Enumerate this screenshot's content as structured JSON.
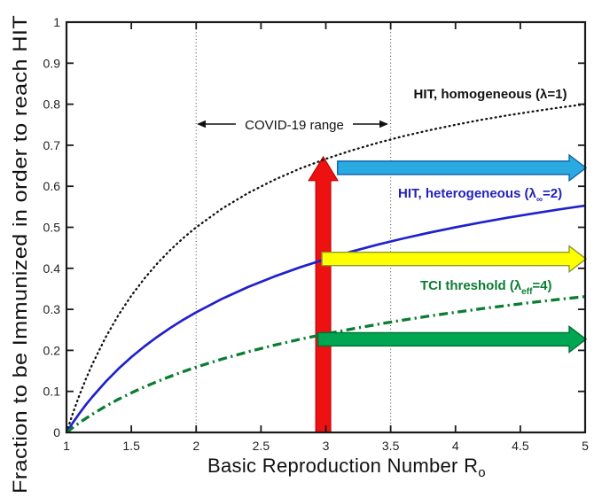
{
  "figure": {
    "background": "#ffffff",
    "frame_color": "#1a1a1a"
  },
  "labels": {
    "y_axis": "Fraction to be Immunized in order to reach HIT",
    "x_axis_main": "Basic Reproduction Number R",
    "x_axis_sub": "o",
    "covid_range": "COVID-19 range",
    "homo_label": "HIT, homogeneous (λ=1)",
    "hetero_pre": "HIT, heterogeneous (λ",
    "hetero_sub": "∞",
    "hetero_post": "=2)",
    "tci_pre": "TCI threshold (λ",
    "tci_sub": "eff",
    "tci_post": "=4)"
  },
  "chart_data": {
    "type": "line",
    "title": "",
    "xlabel": "Basic Reproduction Number Ro",
    "ylabel": "Fraction to be Immunized in order to reach HIT",
    "xlim": [
      1,
      5
    ],
    "ylim": [
      0,
      1
    ],
    "grid": "off",
    "legend_position": "labels-on-plot",
    "x_ticks": [
      1,
      1.5,
      2,
      2.5,
      3,
      3.5,
      4,
      4.5,
      5
    ],
    "x_tick_labels": [
      "1",
      "1.5",
      "2",
      "2.5",
      "3",
      "3.5",
      "4",
      "4.5",
      "5"
    ],
    "y_ticks": [
      0,
      0.1,
      0.2,
      0.3,
      0.4,
      0.5,
      0.6,
      0.7,
      0.8,
      0.9,
      1
    ],
    "y_tick_labels": [
      "0",
      "0.1",
      "0.2",
      "0.3",
      "0.4",
      "0.5",
      "0.6",
      "0.7",
      "0.8",
      "0.9",
      "1"
    ],
    "x": [
      1,
      1.05,
      1.1,
      1.15,
      1.2,
      1.3,
      1.4,
      1.5,
      1.6,
      1.7,
      1.8,
      1.9,
      2,
      2.2,
      2.4,
      2.6,
      2.8,
      3,
      3.2,
      3.4,
      3.6,
      3.8,
      4,
      4.2,
      4.4,
      4.6,
      4.8,
      5
    ],
    "series": [
      {
        "name": "HIT, homogeneous (λ=1)",
        "formula": "1 - 1/R0",
        "style": "dotted",
        "color": "#111111",
        "values": [
          0,
          0.0476,
          0.0909,
          0.1304,
          0.1667,
          0.2308,
          0.2857,
          0.3333,
          0.375,
          0.4118,
          0.4444,
          0.4737,
          0.5,
          0.5455,
          0.5833,
          0.6154,
          0.6429,
          0.6667,
          0.6875,
          0.7059,
          0.7222,
          0.7368,
          0.75,
          0.7619,
          0.7727,
          0.7826,
          0.7917,
          0.8
        ]
      },
      {
        "name": "HIT, heterogeneous (λ∞=2)",
        "formula": "1 - R0^(-1/2)",
        "style": "solid",
        "color": "#2121cc",
        "values": [
          0,
          0.0241,
          0.0465,
          0.0675,
          0.0871,
          0.1229,
          0.1548,
          0.1835,
          0.2094,
          0.233,
          0.2546,
          0.2745,
          0.2929,
          0.3258,
          0.3545,
          0.3798,
          0.4024,
          0.4226,
          0.441,
          0.4577,
          0.473,
          0.487,
          0.5,
          0.512,
          0.5233,
          0.5337,
          0.5436,
          0.5528
        ]
      },
      {
        "name": "TCI threshold (λeff=4)",
        "formula": "1 - R0^(-1/4)",
        "style": "dashdot",
        "color": "#0a7d32",
        "values": [
          0,
          0.0121,
          0.0235,
          0.0343,
          0.0446,
          0.0634,
          0.0807,
          0.0964,
          0.1109,
          0.1242,
          0.1366,
          0.1482,
          0.1591,
          0.1789,
          0.1966,
          0.2125,
          0.2269,
          0.2402,
          0.2523,
          0.2636,
          0.274,
          0.2838,
          0.2929,
          0.3015,
          0.3096,
          0.3172,
          0.3244,
          0.3312
        ]
      }
    ],
    "annotations": {
      "covid_range": {
        "label": "COVID-19 range",
        "x_from": 2,
        "x_to": 3.5,
        "line_style": "dotted-vertical",
        "line_color": "#555555"
      },
      "red_vertical_arrow": {
        "x": 2.98,
        "y_from": 0,
        "y_tip": 0.672,
        "fill": "#ee1111",
        "stroke": "#b50000"
      },
      "horizontal_arrows": [
        {
          "name": "hit-homogeneous-arrow",
          "y": 0.645,
          "x_from": 3.09,
          "x_to": 5,
          "fill": "#29abe2",
          "stroke": "#1465a8"
        },
        {
          "name": "hit-heterogeneous-arrow",
          "y": 0.423,
          "x_from": 2.97,
          "x_to": 5,
          "fill": "#ffff00",
          "stroke": "#8a9a30"
        },
        {
          "name": "tci-threshold-arrow",
          "y": 0.227,
          "x_from": 2.94,
          "x_to": 5,
          "fill": "#00a651",
          "stroke": "#007236"
        }
      ]
    }
  }
}
